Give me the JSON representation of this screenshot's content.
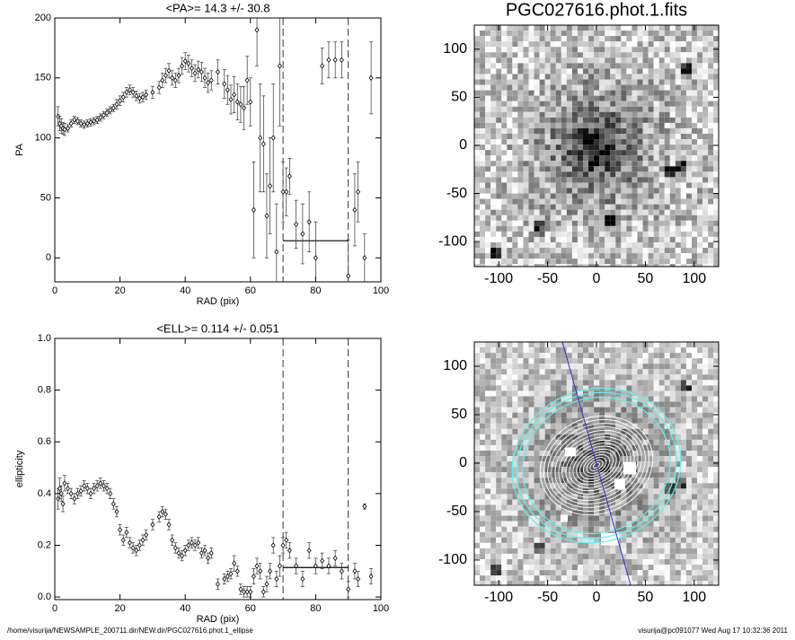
{
  "chart_data": [
    {
      "type": "errorbar",
      "title": "<PA>=  14.3 +/-  30.8",
      "xlabel": "RAD (pix)",
      "ylabel": "PA",
      "x": [
        1,
        1.5,
        2,
        2.5,
        3,
        4,
        5,
        6,
        7,
        8,
        9,
        10,
        11,
        12,
        13,
        14,
        15,
        16,
        17,
        18,
        19,
        20,
        21,
        22,
        23,
        24,
        25,
        26,
        27,
        28,
        30,
        32,
        33,
        34,
        35,
        36,
        37,
        38,
        39,
        40,
        41,
        42,
        43,
        44,
        45,
        46,
        47,
        48,
        50,
        52,
        53,
        54,
        55,
        56,
        57,
        58,
        59,
        60,
        61,
        62,
        63,
        64,
        65,
        66,
        67,
        68,
        69,
        70,
        71,
        72,
        74,
        76,
        78,
        80,
        82,
        84,
        86,
        88,
        90,
        92,
        93,
        95,
        97
      ],
      "values": [
        118,
        112,
        110,
        108,
        107,
        108,
        112,
        115,
        114,
        112,
        111,
        112,
        113,
        114,
        115,
        117,
        119,
        121,
        123,
        125,
        128,
        131,
        134,
        138,
        140,
        138,
        135,
        133,
        134,
        136,
        138,
        142,
        148,
        152,
        156,
        150,
        148,
        152,
        160,
        164,
        162,
        158,
        154,
        157,
        155,
        150,
        146,
        148,
        155,
        145,
        140,
        132,
        136,
        130,
        128,
        125,
        148,
        130,
        40,
        190,
        100,
        95,
        35,
        60,
        100,
        5,
        160,
        55,
        55,
        68,
        28,
        20,
        30,
        0,
        160,
        165,
        165,
        165,
        -15,
        40,
        55,
        0,
        150
      ],
      "errors": [
        8,
        6,
        6,
        5,
        5,
        3,
        3,
        3,
        3,
        3,
        3,
        3,
        3,
        3,
        3,
        3,
        3,
        3,
        3,
        3,
        4,
        4,
        4,
        4,
        4,
        4,
        4,
        4,
        4,
        4,
        5,
        5,
        6,
        6,
        6,
        6,
        6,
        6,
        7,
        7,
        7,
        7,
        7,
        7,
        8,
        8,
        8,
        8,
        10,
        12,
        12,
        12,
        15,
        15,
        15,
        18,
        20,
        20,
        40,
        30,
        45,
        40,
        35,
        40,
        45,
        40,
        50,
        25,
        20,
        15,
        20,
        25,
        25,
        30,
        15,
        15,
        15,
        15,
        30,
        30,
        25,
        20,
        30
      ],
      "xlim": [
        0,
        100
      ],
      "ylim": [
        -20,
        200
      ],
      "xticks": [
        0,
        20,
        40,
        60,
        80,
        100
      ],
      "yticks": [
        0,
        50,
        100,
        150,
        200
      ],
      "vlines": [
        70,
        90
      ],
      "mean_line": {
        "y": 14.3,
        "x": [
          70,
          90
        ]
      }
    },
    {
      "type": "errorbar",
      "title": "<ELL>= 0.114 +/-  0.051",
      "xlabel": "RAD (pix)",
      "ylabel": "ellipticity",
      "x": [
        1,
        1.5,
        2,
        2.5,
        3,
        4,
        5,
        6,
        7,
        8,
        9,
        10,
        11,
        12,
        13,
        14,
        15,
        16,
        17,
        18,
        19,
        20,
        21,
        22,
        23,
        24,
        25,
        26,
        27,
        28,
        30,
        32,
        33,
        34,
        35,
        36,
        37,
        38,
        39,
        40,
        41,
        42,
        43,
        44,
        45,
        46,
        47,
        48,
        50,
        52,
        53,
        54,
        55,
        56,
        57,
        58,
        59,
        60,
        61,
        62,
        63,
        64,
        65,
        66,
        67,
        68,
        69,
        70,
        71,
        72,
        74,
        76,
        78,
        80,
        82,
        84,
        86,
        88,
        90,
        92,
        93,
        95,
        97
      ],
      "values": [
        0.38,
        0.42,
        0.4,
        0.36,
        0.44,
        0.42,
        0.4,
        0.38,
        0.4,
        0.41,
        0.43,
        0.42,
        0.4,
        0.42,
        0.43,
        0.44,
        0.43,
        0.42,
        0.4,
        0.36,
        0.33,
        0.26,
        0.22,
        0.25,
        0.21,
        0.19,
        0.18,
        0.2,
        0.22,
        0.24,
        0.28,
        0.31,
        0.33,
        0.32,
        0.28,
        0.22,
        0.19,
        0.17,
        0.16,
        0.18,
        0.2,
        0.21,
        0.2,
        0.21,
        0.17,
        0.18,
        0.15,
        0.17,
        0.05,
        0.07,
        0.08,
        0.09,
        0.13,
        0.1,
        0.03,
        0.02,
        0.02,
        0.02,
        0.08,
        0.12,
        0.1,
        0.02,
        0.05,
        0.1,
        0.2,
        0.07,
        0.12,
        0.2,
        0.22,
        0.18,
        0.12,
        0.07,
        0.18,
        0.12,
        0.14,
        0.12,
        0.15,
        0.1,
        0.03,
        0.1,
        0.07,
        0.35,
        0.08
      ],
      "errors": [
        0.04,
        0.04,
        0.03,
        0.03,
        0.03,
        0.02,
        0.02,
        0.02,
        0.02,
        0.02,
        0.02,
        0.02,
        0.02,
        0.02,
        0.02,
        0.02,
        0.02,
        0.02,
        0.02,
        0.02,
        0.02,
        0.02,
        0.02,
        0.02,
        0.02,
        0.02,
        0.02,
        0.02,
        0.02,
        0.02,
        0.02,
        0.02,
        0.02,
        0.02,
        0.02,
        0.02,
        0.02,
        0.02,
        0.02,
        0.02,
        0.02,
        0.02,
        0.02,
        0.02,
        0.02,
        0.02,
        0.02,
        0.02,
        0.02,
        0.02,
        0.02,
        0.02,
        0.03,
        0.02,
        0.02,
        0.02,
        0.02,
        0.02,
        0.03,
        0.03,
        0.03,
        0.02,
        0.03,
        0.03,
        0.03,
        0.03,
        0.04,
        0.03,
        0.03,
        0.03,
        0.03,
        0.03,
        0.03,
        0.03,
        0.03,
        0.03,
        0.03,
        0.03,
        0.03,
        0.03,
        0.03,
        0.01,
        0.03
      ],
      "xlim": [
        0,
        100
      ],
      "ylim": [
        -0.01,
        1.0
      ],
      "xticks": [
        0,
        20,
        40,
        60,
        80,
        100
      ],
      "yticks": [
        {
          "value": 0,
          "label": "0.0"
        },
        0.2,
        0.4,
        0.6,
        0.8,
        {
          "value": 1,
          "label": "1.0"
        }
      ],
      "vlines": [
        70,
        90
      ],
      "mean_line": {
        "y": 0.114,
        "x": [
          70,
          90
        ]
      }
    },
    {
      "type": "image",
      "title": "PGC027616.phot.1.fits",
      "xlim": [
        -125,
        125
      ],
      "ylim": [
        -126,
        125
      ],
      "xticks": [
        -100,
        -50,
        0,
        50,
        100
      ],
      "yticks": [
        -100,
        -50,
        0,
        50,
        100
      ]
    },
    {
      "type": "image_contours",
      "xlim": [
        -125,
        125
      ],
      "ylim": [
        -126,
        125
      ],
      "xticks": [
        -100,
        -50,
        0,
        50,
        100
      ],
      "yticks": [
        -100,
        -50,
        0,
        50,
        100
      ]
    }
  ],
  "footer": {
    "path": "/home/visurija/NEWSAMPLE_200711.dir/NEW.dir/PGC027616.phot.1_ellipse",
    "stamp": "visurija@pc091077  Wed Aug 17 10:32:36 2011"
  }
}
